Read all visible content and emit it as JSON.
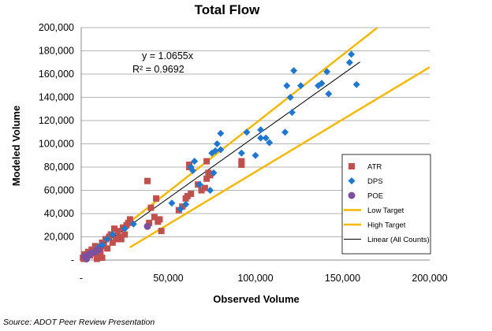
{
  "chart_data": {
    "type": "scatter",
    "title": "Total Flow",
    "xlabel": "Observed Volume",
    "ylabel": "Modeled Volume",
    "xlim": [
      0,
      200000
    ],
    "ylim": [
      0,
      200000
    ],
    "x_ticks": [
      {
        "value": 50000,
        "label": "50,000"
      },
      {
        "value": 100000,
        "label": "100,000"
      },
      {
        "value": 150000,
        "label": "150,000"
      },
      {
        "value": 200000,
        "label": "200,000"
      }
    ],
    "y_ticks": [
      {
        "value": 20000,
        "label": "20,000"
      },
      {
        "value": 40000,
        "label": "40,000"
      },
      {
        "value": 60000,
        "label": "60,000"
      },
      {
        "value": 80000,
        "label": "80,000"
      },
      {
        "value": 100000,
        "label": "100,000"
      },
      {
        "value": 120000,
        "label": "120,000"
      },
      {
        "value": 140000,
        "label": "140,000"
      },
      {
        "value": 160000,
        "label": "160,000"
      },
      {
        "value": 180000,
        "label": "180,000"
      },
      {
        "value": 200000,
        "label": "200,000"
      }
    ],
    "y_zero_label": "-",
    "x_zero_label": "-",
    "grid": "horizontal",
    "legend_position": "right",
    "equation": {
      "line1": "y = 1.0655x",
      "line2": "R² = 0.9692"
    },
    "series": [
      {
        "name": "ATR",
        "marker": "square",
        "color": "#c0504d",
        "points": [
          [
            38000,
            68000
          ],
          [
            40000,
            45000
          ],
          [
            42000,
            37000
          ],
          [
            43000,
            53000
          ],
          [
            44000,
            33000
          ],
          [
            45000,
            35000
          ],
          [
            46000,
            25000
          ],
          [
            39000,
            32000
          ],
          [
            62000,
            82000
          ],
          [
            62000,
            80000
          ],
          [
            63000,
            57000
          ],
          [
            61000,
            55000
          ],
          [
            58000,
            46000
          ],
          [
            56000,
            43000
          ],
          [
            60000,
            53000
          ],
          [
            72000,
            85000
          ],
          [
            73000,
            75000
          ],
          [
            72000,
            70000
          ],
          [
            74000,
            73000
          ],
          [
            71000,
            62000
          ],
          [
            69000,
            60000
          ],
          [
            67000,
            65000
          ],
          [
            92000,
            85000
          ],
          [
            92000,
            82000
          ],
          [
            28000,
            35000
          ],
          [
            27000,
            32000
          ],
          [
            26000,
            30000
          ],
          [
            24000,
            28000
          ],
          [
            25000,
            22000
          ],
          [
            22000,
            20000
          ],
          [
            21000,
            25000
          ],
          [
            20000,
            18000
          ],
          [
            19000,
            27000
          ],
          [
            18000,
            15000
          ],
          [
            17000,
            22000
          ],
          [
            16000,
            20000
          ],
          [
            15000,
            10000
          ],
          [
            14000,
            18000
          ],
          [
            13000,
            12000
          ],
          [
            12000,
            15000
          ],
          [
            11000,
            8000
          ],
          [
            10000,
            10000
          ],
          [
            9000,
            5000
          ],
          [
            8000,
            12000
          ],
          [
            7000,
            6000
          ],
          [
            6000,
            9000
          ],
          [
            5000,
            4000
          ],
          [
            4000,
            7000
          ],
          [
            3000,
            3000
          ],
          [
            2000,
            5000
          ],
          [
            1500,
            1000
          ],
          [
            1000,
            2000
          ],
          [
            12000,
            2000
          ],
          [
            11000,
            5000
          ],
          [
            9000,
            1000
          ],
          [
            23000,
            18000
          ]
        ]
      },
      {
        "name": "DPS",
        "marker": "diamond",
        "color": "#1f77d0",
        "points": [
          [
            155000,
            177000
          ],
          [
            154000,
            170000
          ],
          [
            158000,
            151000
          ],
          [
            141000,
            162000
          ],
          [
            142000,
            143000
          ],
          [
            138000,
            152000
          ],
          [
            136000,
            150000
          ],
          [
            122000,
            163000
          ],
          [
            126000,
            150000
          ],
          [
            118000,
            150000
          ],
          [
            120000,
            140000
          ],
          [
            121000,
            127000
          ],
          [
            117000,
            110000
          ],
          [
            108000,
            101000
          ],
          [
            106000,
            105000
          ],
          [
            103000,
            112000
          ],
          [
            103000,
            105000
          ],
          [
            100000,
            90000
          ],
          [
            95000,
            110000
          ],
          [
            92000,
            92000
          ],
          [
            80000,
            109000
          ],
          [
            80000,
            95000
          ],
          [
            77000,
            94000
          ],
          [
            75000,
            92000
          ],
          [
            76000,
            75000
          ],
          [
            74000,
            60000
          ],
          [
            78000,
            100000
          ],
          [
            65000,
            85000
          ],
          [
            64000,
            77000
          ],
          [
            63000,
            80000
          ],
          [
            68000,
            65000
          ],
          [
            60000,
            48000
          ],
          [
            52000,
            49000
          ],
          [
            57000,
            44000
          ],
          [
            30000,
            31000
          ],
          [
            25000,
            27000
          ],
          [
            18000,
            22000
          ],
          [
            15000,
            18000
          ],
          [
            12000,
            13000
          ],
          [
            10000,
            11000
          ],
          [
            8000,
            8000
          ],
          [
            6000,
            6000
          ],
          [
            4000,
            5000
          ],
          [
            3000,
            3000
          ],
          [
            2000,
            2000
          ]
        ]
      },
      {
        "name": "POE",
        "marker": "circle",
        "color": "#7b509f",
        "points": [
          [
            38000,
            29000
          ],
          [
            2000,
            3000
          ],
          [
            4000,
            4000
          ],
          [
            6000,
            6000
          ],
          [
            8000,
            7000
          ],
          [
            10000,
            9000
          ],
          [
            3000,
            1000
          ]
        ]
      }
    ],
    "lines": [
      {
        "name": "Low Target",
        "color": "#f5b800",
        "x": [
          28000,
          200000
        ],
        "y": [
          11000,
          166000
        ]
      },
      {
        "name": "High Target",
        "color": "#f5b800",
        "x": [
          0,
          170000
        ],
        "y": [
          0,
          200000
        ]
      },
      {
        "name": "Linear (All Counts)",
        "color": "#000000",
        "x": [
          0,
          160000
        ],
        "y": [
          0,
          170480
        ]
      }
    ]
  },
  "source": "Source: ADOT Peer Review Presentation"
}
